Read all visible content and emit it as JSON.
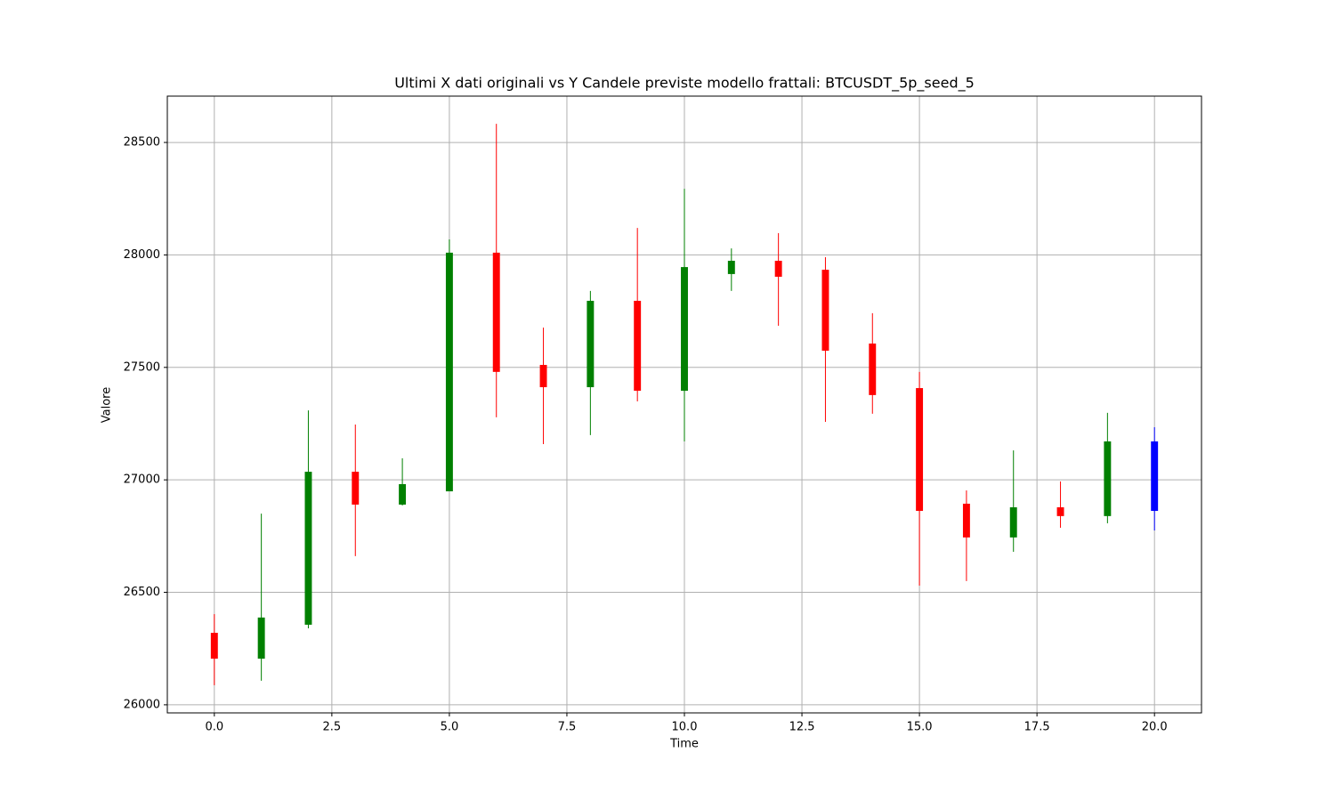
{
  "chart_data": {
    "type": "candlestick",
    "title": "Ultimi X dati originali vs Y Candele previste modello frattali: BTCUSDT_5p_seed_5",
    "xlabel": "Time",
    "ylabel": "Valore",
    "x": [
      0,
      1,
      2,
      3,
      4,
      5,
      6,
      7,
      8,
      9,
      10,
      11,
      12,
      13,
      14,
      15,
      16,
      17,
      18,
      19,
      20
    ],
    "open": [
      26320,
      26205,
      26356,
      27036,
      26890,
      26949,
      28010,
      27511,
      27412,
      27796,
      27396,
      27915,
      27974,
      27934,
      27606,
      27408,
      26894,
      26744,
      26878,
      26839,
      26862
    ],
    "high": [
      26403,
      26850,
      27309,
      27246,
      27096,
      28069,
      28583,
      27677,
      27840,
      28120,
      28294,
      28029,
      28097,
      27990,
      27741,
      27480,
      26953,
      27131,
      26993,
      27298,
      27234
    ],
    "low": [
      26087,
      26107,
      26340,
      26661,
      26886,
      26949,
      27278,
      27159,
      27199,
      27349,
      27171,
      27840,
      27685,
      27258,
      27294,
      26530,
      26550,
      26680,
      26787,
      26807,
      26775
    ],
    "close": [
      26205,
      26388,
      27036,
      26890,
      26981,
      28010,
      27480,
      27412,
      27796,
      27396,
      27946,
      27974,
      27903,
      27574,
      27377,
      26862,
      26744,
      26878,
      26839,
      27171,
      27171
    ],
    "colors": [
      "#ff0000",
      "#008000",
      "#008000",
      "#ff0000",
      "#008000",
      "#008000",
      "#ff0000",
      "#ff0000",
      "#008000",
      "#ff0000",
      "#008000",
      "#008000",
      "#ff0000",
      "#ff0000",
      "#ff0000",
      "#ff0000",
      "#ff0000",
      "#008000",
      "#ff0000",
      "#008000",
      "#0000ff"
    ],
    "xlim": [
      -1.0,
      21.0
    ],
    "ylim": [
      25964,
      28706
    ],
    "xticks": [
      {
        "value": 0,
        "label": "0.0"
      },
      2.5,
      {
        "value": 5,
        "label": "5.0"
      },
      7.5,
      {
        "value": 10,
        "label": "10.0"
      },
      12.5,
      {
        "value": 15,
        "label": "15.0"
      },
      17.5,
      {
        "value": 20,
        "label": "20.0"
      }
    ],
    "yticks": [
      26000,
      26500,
      27000,
      27500,
      28000,
      28500
    ],
    "grid": true
  }
}
